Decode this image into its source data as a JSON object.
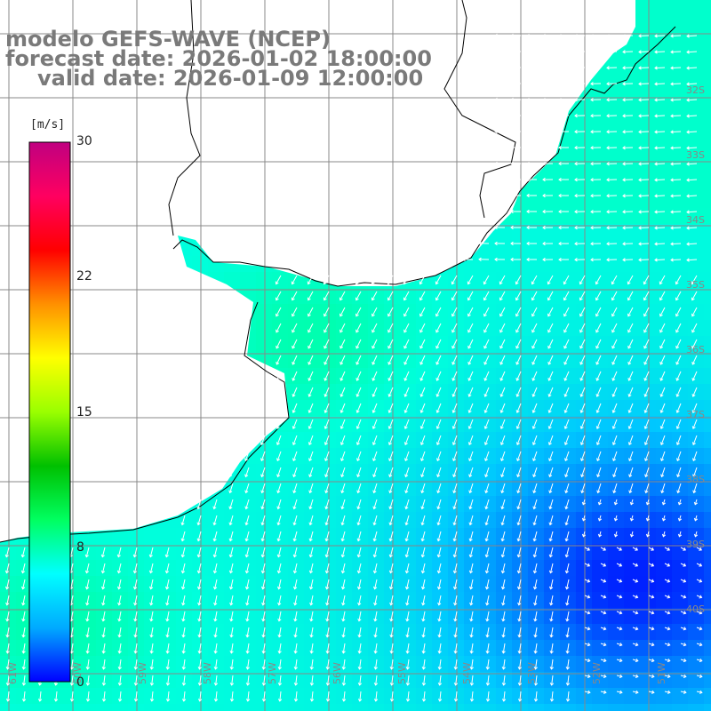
{
  "title": {
    "line1": "modelo GEFS-WAVE (NCEP)",
    "line2": "forecast date: 2026-01-02 18:00:00",
    "line3": "valid date: 2026-01-09 12:00:00"
  },
  "colorbar": {
    "unit": "[m/s]",
    "ticks": [
      "30",
      "22",
      "15",
      "8",
      "0"
    ],
    "stops": [
      "#0000ff",
      "#00aaff",
      "#00ffff",
      "#00ff60",
      "#00c000",
      "#9aff00",
      "#ffff00",
      "#ff9000",
      "#ff0000",
      "#ff0060",
      "#c00080"
    ]
  },
  "map": {
    "lat_labels": [
      "32S",
      "33S",
      "34S",
      "35S",
      "36S",
      "37S",
      "38S",
      "39S",
      "40S"
    ],
    "lon_labels": [
      "61W",
      "60W",
      "59W",
      "58W",
      "57W",
      "56W",
      "55W",
      "54W",
      "53W",
      "52W",
      "51W"
    ],
    "colors": {
      "land": "#ffffff",
      "grid": "#888888",
      "coast": "#000000",
      "arrow": "#ffffff"
    }
  }
}
